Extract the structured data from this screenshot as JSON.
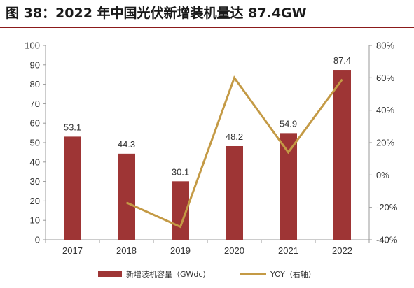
{
  "figure": {
    "title": "图 38：2022 年中国光伏新增装机量达 87.4GW"
  },
  "chart_data": {
    "type": "bar",
    "categories": [
      "2017",
      "2018",
      "2019",
      "2020",
      "2021",
      "2022"
    ],
    "series": [
      {
        "name": "新增装机容量（GWdc）",
        "type": "bar",
        "axis": "left",
        "values": [
          53.1,
          44.3,
          30.1,
          48.2,
          54.9,
          87.4
        ],
        "color": "#9e3535"
      },
      {
        "name": "YOY（右轴）",
        "type": "line",
        "axis": "right",
        "values": [
          null,
          -17,
          -32,
          60,
          14,
          59
        ],
        "color": "#c49a45"
      }
    ],
    "ylim_left": [
      0,
      100
    ],
    "yticks_left": [
      0,
      10,
      20,
      30,
      40,
      50,
      60,
      70,
      80,
      90,
      100
    ],
    "ylim_right": [
      -40,
      80
    ],
    "yticks_right": [
      "-40%",
      "-20%",
      "0%",
      "20%",
      "40%",
      "60%",
      "80%"
    ],
    "data_labels": [
      "53.1",
      "44.3",
      "30.1",
      "48.2",
      "54.9",
      "87.4"
    ],
    "grid": false,
    "legend_position": "bottom"
  }
}
